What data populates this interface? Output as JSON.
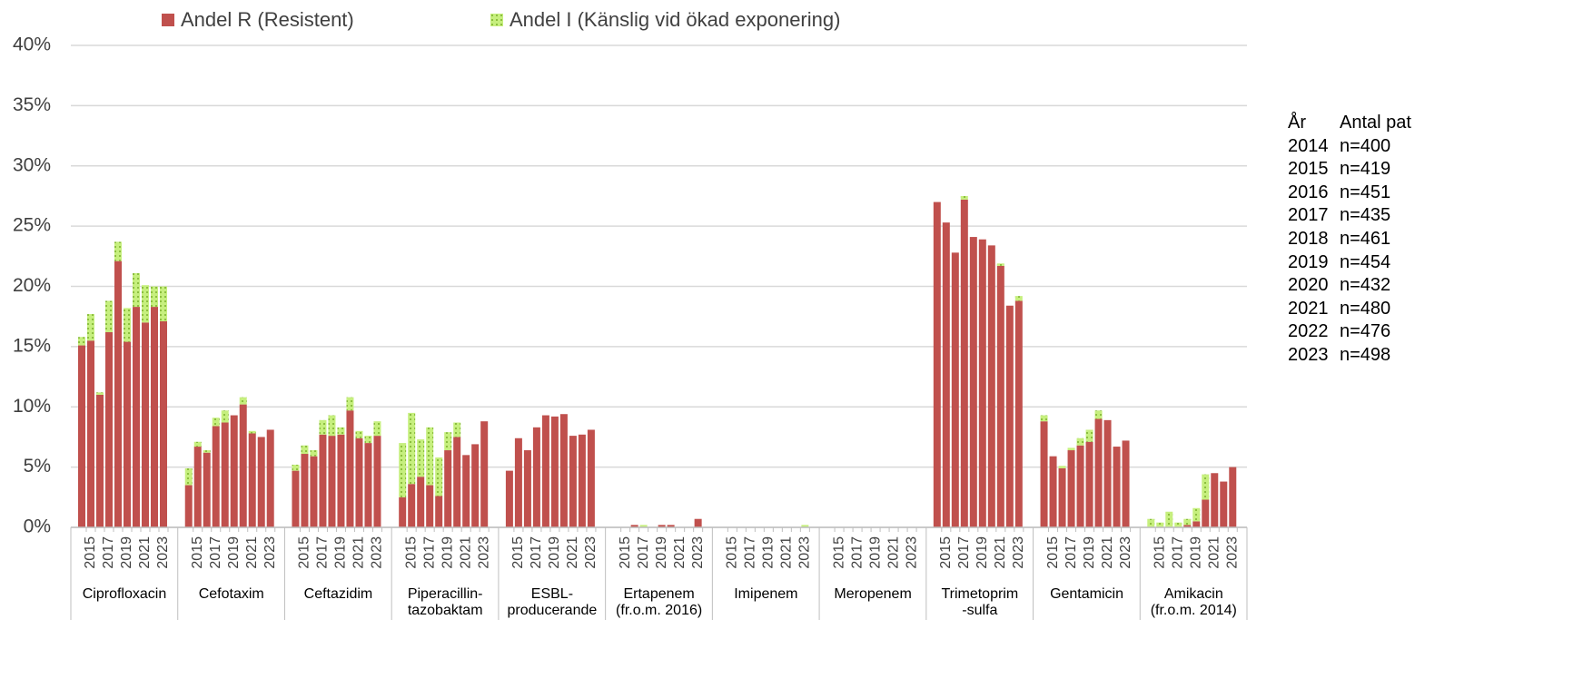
{
  "chart_data": {
    "type": "bar",
    "stacked": true,
    "groups": [
      "Ciprofloxacin",
      "Cefotaxim",
      "Ceftazidim",
      "Piperacillin-\ntazobaktam",
      "ESBL-\nproducerande",
      "Ertapenem\n(fr.o.m. 2016)",
      "Imipenem",
      "Meropenem",
      "Trimetoprim\n-sulfa",
      "Gentamicin",
      "Amikacin\n(fr.o.m. 2014)"
    ],
    "categories": [
      null,
      "2015",
      null,
      "2017",
      null,
      "2019",
      null,
      "2021",
      null,
      "2023"
    ],
    "series": [
      {
        "name": "Andel R (Resistent)",
        "color": "#c0504d",
        "values": [
          [
            15.1,
            15.5,
            11.0,
            16.2,
            22.1,
            15.4,
            18.3,
            17.0,
            18.3,
            17.1
          ],
          [
            3.5,
            6.7,
            6.2,
            8.4,
            8.7,
            9.3,
            10.2,
            7.8,
            7.5,
            8.1
          ],
          [
            4.7,
            6.1,
            5.9,
            7.7,
            7.6,
            7.7,
            9.7,
            7.4,
            7.0,
            7.6
          ],
          [
            2.5,
            3.6,
            4.2,
            3.5,
            2.6,
            6.4,
            7.5,
            6.0,
            6.9,
            8.8
          ],
          [
            4.7,
            7.4,
            6.4,
            8.3,
            9.3,
            9.2,
            9.4,
            7.6,
            7.7,
            8.1
          ],
          [
            null,
            null,
            0.2,
            0,
            0,
            0.2,
            0.2,
            0,
            0,
            0.7
          ],
          [
            0,
            0,
            0,
            0,
            0,
            0,
            0,
            0,
            0,
            0
          ],
          [
            0,
            0,
            0,
            0,
            0,
            0,
            0,
            0,
            0,
            0
          ],
          [
            27.0,
            25.3,
            22.8,
            27.2,
            24.1,
            23.9,
            23.4,
            21.7,
            18.4,
            18.8
          ],
          [
            8.8,
            5.9,
            4.9,
            6.4,
            6.8,
            7.1,
            9.0,
            8.9,
            6.7,
            7.2
          ],
          [
            0,
            0,
            0,
            0,
            0.2,
            0.5,
            2.3,
            4.5,
            3.8,
            5.0
          ]
        ]
      },
      {
        "name": "Andel I (Känslig vid ökad exponering)",
        "color": "#c6ef7e",
        "values": [
          [
            0.7,
            2.2,
            0.2,
            2.6,
            1.6,
            2.8,
            2.8,
            3.1,
            1.7,
            2.9
          ],
          [
            1.4,
            0.4,
            0.2,
            0.7,
            1.0,
            0,
            0.6,
            0.2,
            0,
            0
          ],
          [
            0.5,
            0.7,
            0.5,
            1.2,
            1.7,
            0.6,
            1.1,
            0.6,
            0.6,
            1.2
          ],
          [
            4.5,
            5.9,
            3.1,
            4.8,
            3.2,
            1.5,
            1.2,
            0,
            0,
            0
          ],
          [
            0,
            0,
            0,
            0,
            0,
            0,
            0,
            0,
            0,
            0
          ],
          [
            null,
            null,
            0,
            0.2,
            0,
            0,
            0,
            0,
            0,
            0
          ],
          [
            0,
            0,
            0,
            0,
            0,
            0,
            0,
            0,
            0,
            0.2
          ],
          [
            0,
            0,
            0,
            0,
            0,
            0,
            0,
            0,
            0,
            0
          ],
          [
            0,
            0,
            0,
            0.3,
            0,
            0,
            0,
            0.2,
            0,
            0.4
          ],
          [
            0.5,
            0,
            0.2,
            0.2,
            0.6,
            1.0,
            0.7,
            0,
            0,
            0
          ],
          [
            0.7,
            0.4,
            1.3,
            0.4,
            0.5,
            1.1,
            2.1,
            0,
            0,
            0
          ]
        ]
      }
    ],
    "ylim": [
      0,
      40
    ],
    "yticks": [
      {
        "value": 0,
        "label": "0%"
      },
      {
        "value": 5,
        "label": "5%"
      },
      {
        "value": 10,
        "label": "10%"
      },
      {
        "value": 15,
        "label": "15%"
      },
      {
        "value": 20,
        "label": "20%"
      },
      {
        "value": 25,
        "label": "25%"
      },
      {
        "value": 30,
        "label": "30%"
      },
      {
        "value": 35,
        "label": "35%"
      },
      {
        "value": 40,
        "label": "40%"
      }
    ],
    "grid": true,
    "legend": "top"
  },
  "side_table": {
    "headers": [
      "År",
      "Antal pat"
    ],
    "rows": [
      [
        "2014",
        "n=400"
      ],
      [
        "2015",
        "n=419"
      ],
      [
        "2016",
        "n=451"
      ],
      [
        "2017",
        "n=435"
      ],
      [
        "2018",
        "n=461"
      ],
      [
        "2019",
        "n=454"
      ],
      [
        "2020",
        "n=432"
      ],
      [
        "2021",
        "n=480"
      ],
      [
        "2022",
        "n=476"
      ],
      [
        "2023",
        "n=498"
      ]
    ]
  }
}
